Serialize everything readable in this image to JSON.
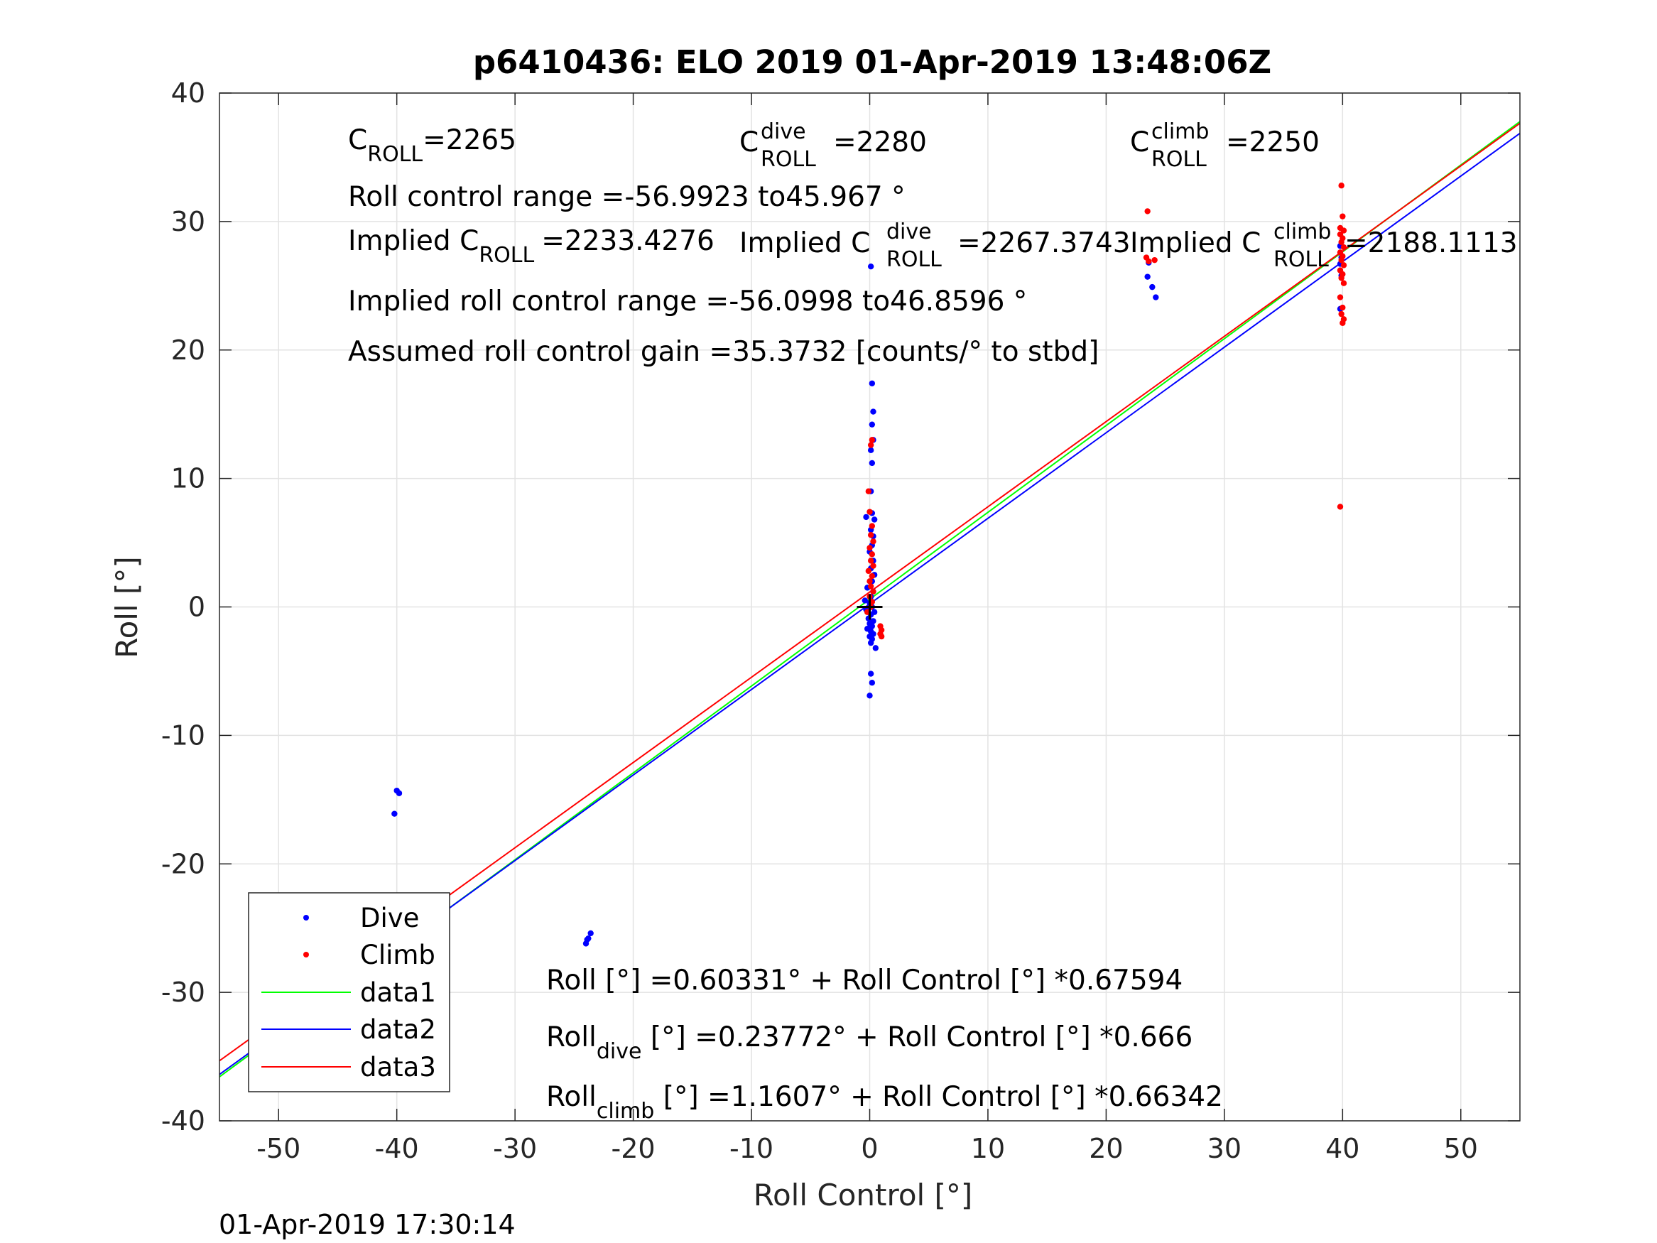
{
  "chart_data": {
    "type": "scatter",
    "title": "p6410436: ELO 2019 01-Apr-2019 13:48:06Z",
    "xlabel": "Roll Control [°]",
    "ylabel": "Roll [°]",
    "xlim": [
      -55,
      55
    ],
    "ylim": [
      -40,
      40
    ],
    "x_ticks": [
      -50,
      -40,
      -30,
      -20,
      -10,
      0,
      10,
      20,
      30,
      40,
      50
    ],
    "y_ticks": [
      -40,
      -30,
      -20,
      -10,
      0,
      10,
      20,
      30,
      40
    ],
    "grid": true,
    "legend_position": "bottom-left",
    "series": [
      {
        "name": "Dive",
        "kind": "points",
        "color": "#0000ff",
        "points": [
          [
            -40,
            -14.3
          ],
          [
            -39.8,
            -14.5
          ],
          [
            -40.2,
            -16.1
          ],
          [
            -40.2,
            -24.0
          ],
          [
            -40.0,
            -23.5
          ],
          [
            -39.6,
            -23.2
          ],
          [
            -40.3,
            -25.9
          ],
          [
            -40.0,
            -26.2
          ],
          [
            -39.8,
            -26.6
          ],
          [
            -40.1,
            -26.9
          ],
          [
            -39.7,
            -27.0
          ],
          [
            -40.2,
            -27.3
          ],
          [
            -39.9,
            -27.6
          ],
          [
            -40.1,
            -27.9
          ],
          [
            -39.6,
            -27.4
          ],
          [
            -40.0,
            -26.0
          ],
          [
            -39.8,
            -27.8
          ],
          [
            -40.0,
            -28.1
          ],
          [
            -23.6,
            -25.4
          ],
          [
            -23.8,
            -25.8
          ],
          [
            -24.0,
            -26.2
          ],
          [
            -23.9,
            -25.9
          ],
          [
            23.5,
            25.7
          ],
          [
            23.9,
            24.9
          ],
          [
            24.2,
            24.1
          ],
          [
            23.6,
            26.8
          ],
          [
            39.8,
            23.2
          ],
          [
            39.9,
            25.8
          ],
          [
            39.8,
            26.7
          ],
          [
            39.9,
            27.2
          ],
          [
            39.8,
            28.1
          ],
          [
            0.1,
            26.5
          ],
          [
            0.2,
            17.4
          ],
          [
            0.3,
            15.2
          ],
          [
            0.2,
            14.2
          ],
          [
            0.3,
            13.0
          ],
          [
            0.1,
            12.2
          ],
          [
            0.2,
            11.2
          ],
          [
            0.1,
            9.0
          ],
          [
            0.2,
            7.3
          ],
          [
            -0.3,
            7.0
          ],
          [
            0.4,
            6.8
          ],
          [
            0.1,
            6.0
          ],
          [
            0.3,
            5.5
          ],
          [
            0.2,
            4.8
          ],
          [
            0.0,
            4.3
          ],
          [
            0.3,
            3.6
          ],
          [
            0.1,
            3.0
          ],
          [
            0.4,
            2.5
          ],
          [
            0.2,
            2.0
          ],
          [
            -0.2,
            1.5
          ],
          [
            0.3,
            1.2
          ],
          [
            0.1,
            0.8
          ],
          [
            -0.4,
            0.5
          ],
          [
            0.0,
            0.3
          ],
          [
            0.2,
            0.0
          ],
          [
            -0.3,
            -0.2
          ],
          [
            0.4,
            -0.4
          ],
          [
            0.1,
            -0.6
          ],
          [
            -0.1,
            -0.9
          ],
          [
            0.3,
            -1.1
          ],
          [
            0.0,
            -1.3
          ],
          [
            0.2,
            -1.5
          ],
          [
            -0.2,
            -1.7
          ],
          [
            0.1,
            -1.9
          ],
          [
            0.3,
            -2.1
          ],
          [
            0.0,
            -2.3
          ],
          [
            0.2,
            -2.5
          ],
          [
            0.1,
            -2.8
          ],
          [
            0.5,
            -3.2
          ],
          [
            0.1,
            -5.2
          ],
          [
            0.2,
            -5.9
          ],
          [
            0.0,
            -6.9
          ]
        ]
      },
      {
        "name": "Climb",
        "kind": "points",
        "color": "#ff0000",
        "points": [
          [
            23.5,
            30.8
          ],
          [
            23.4,
            27.2
          ],
          [
            23.6,
            26.9
          ],
          [
            24.1,
            27.0
          ],
          [
            39.9,
            32.8
          ],
          [
            40.0,
            30.4
          ],
          [
            39.8,
            29.5
          ],
          [
            40.1,
            29.3
          ],
          [
            39.8,
            29.0
          ],
          [
            40.0,
            28.7
          ],
          [
            39.9,
            28.4
          ],
          [
            40.1,
            28.0
          ],
          [
            39.8,
            27.6
          ],
          [
            40.0,
            27.3
          ],
          [
            39.9,
            27.0
          ],
          [
            40.1,
            26.6
          ],
          [
            39.8,
            26.2
          ],
          [
            40.0,
            25.9
          ],
          [
            39.9,
            25.6
          ],
          [
            40.1,
            25.2
          ],
          [
            39.8,
            24.1
          ],
          [
            40.0,
            23.3
          ],
          [
            39.9,
            22.8
          ],
          [
            40.1,
            22.4
          ],
          [
            40.0,
            22.1
          ],
          [
            39.8,
            7.8
          ],
          [
            0.2,
            13.0
          ],
          [
            0.1,
            12.6
          ],
          [
            -0.1,
            9.0
          ],
          [
            0.0,
            7.4
          ],
          [
            0.2,
            6.3
          ],
          [
            0.1,
            5.6
          ],
          [
            0.3,
            5.1
          ],
          [
            0.0,
            4.6
          ],
          [
            0.2,
            4.1
          ],
          [
            0.1,
            3.6
          ],
          [
            0.3,
            3.2
          ],
          [
            -0.1,
            2.8
          ],
          [
            0.2,
            2.4
          ],
          [
            0.0,
            2.0
          ],
          [
            0.1,
            1.6
          ],
          [
            0.3,
            1.2
          ],
          [
            0.0,
            0.8
          ],
          [
            0.2,
            0.4
          ],
          [
            0.1,
            0.0
          ],
          [
            -0.2,
            -0.4
          ],
          [
            0.9,
            -1.5
          ],
          [
            1.0,
            -1.8
          ],
          [
            0.9,
            -2.1
          ],
          [
            1.0,
            -2.3
          ]
        ]
      },
      {
        "name": "data1",
        "kind": "line",
        "color": "#00ff00",
        "intercept": 0.60331,
        "slope": 0.67594
      },
      {
        "name": "data2",
        "kind": "line",
        "color": "#0000ff",
        "intercept": 0.23772,
        "slope": 0.666
      },
      {
        "name": "data3",
        "kind": "line",
        "color": "#ff0000",
        "intercept": 1.1607,
        "slope": 0.66342
      }
    ],
    "marker": {
      "x": 0,
      "y": 0,
      "symbol": "+"
    },
    "annotations": {
      "c_roll": {
        "base": "C",
        "sub": "ROLL",
        "value": "=2265"
      },
      "c_roll_dive": {
        "base": "C",
        "sup": "dive",
        "sub": "ROLL",
        "value": "=2280"
      },
      "c_roll_climb": {
        "base": "C",
        "sup": "climb",
        "sub": "ROLL",
        "value": "=2250"
      },
      "roll_control_range": "Roll control range =-56.9923 to45.967 °",
      "implied_c_roll": {
        "prefix": "Implied C",
        "sub": "ROLL",
        "value": "=2233.4276"
      },
      "implied_c_roll_dive": {
        "prefix": "Implied C",
        "sup": "dive",
        "sub": "ROLL",
        "value": "=2267.3743"
      },
      "implied_c_roll_climb": {
        "prefix": "Implied C",
        "sup": "climb",
        "sub": "ROLL",
        "value": "=2188.1113"
      },
      "implied_roll_control_range": "Implied roll control range =-56.0998 to46.8596 °",
      "assumed_gain": "Assumed roll control gain =35.3732 [counts/° to stbd]",
      "fit_all": {
        "base": "Roll",
        "sub": "",
        "text": " [°] =0.60331° + Roll Control [°] *0.67594"
      },
      "fit_dive": {
        "base": "Roll",
        "sub": "dive",
        "text": " [°] =0.23772° + Roll Control [°] *0.666"
      },
      "fit_climb": {
        "base": "Roll",
        "sub": "climb",
        "text": " [°] =1.1607° + Roll Control [°] *0.66342"
      }
    },
    "footer": "01-Apr-2019 17:30:14"
  }
}
